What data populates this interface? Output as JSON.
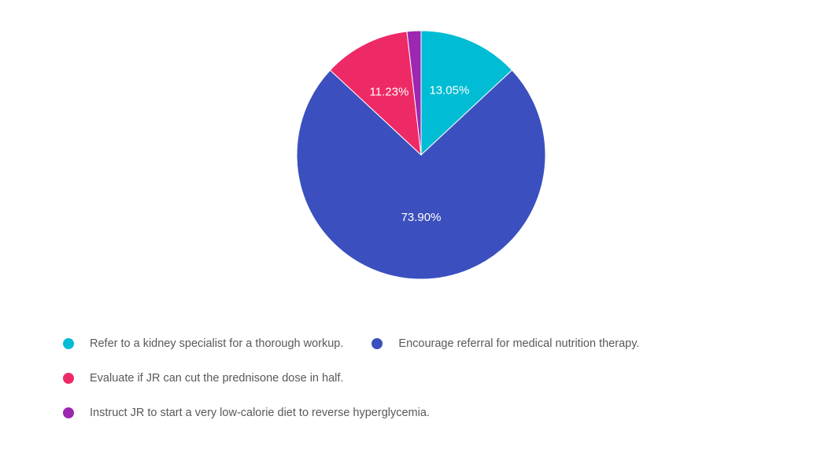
{
  "chart_data": {
    "type": "pie",
    "title": "",
    "slices": [
      {
        "label": "Refer to a kidney specialist for a thorough workup.",
        "value": 13.05,
        "value_label": "13.05%",
        "color": "#00BCD4",
        "show_label": true
      },
      {
        "label": "Encourage referral for medical nutrition therapy.",
        "value": 73.9,
        "value_label": "73.90%",
        "color": "#3B50BE",
        "show_label": true
      },
      {
        "label": "Evaluate if JR can cut the prednisone dose in half.",
        "value": 11.23,
        "value_label": "11.23%",
        "color": "#EE2A66",
        "show_label": true
      },
      {
        "label": "Instruct JR to start a very low-calorie diet to reverse hyperglycemia.",
        "value": 1.82,
        "value_label": "",
        "color": "#9C27B0",
        "show_label": false
      }
    ],
    "legend_position": "bottom"
  }
}
